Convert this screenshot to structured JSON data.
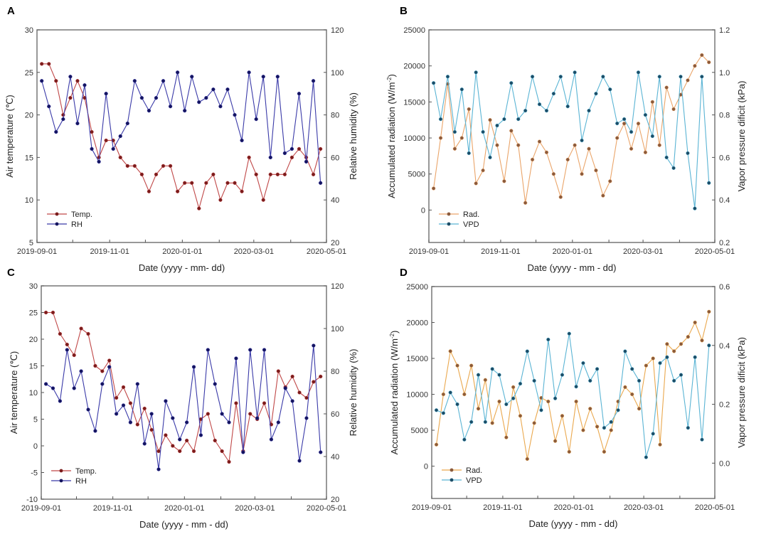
{
  "chart_data": [
    {
      "panel": "A",
      "type": "line",
      "x_start": "2019-09-05",
      "x_step_days": 6,
      "xlabel": "Date (yyyy - mm- dd)",
      "xticks": [
        "2019-09-01",
        "2019-11-01",
        "2020-01-01",
        "2020-03-01",
        "2020-05-01"
      ],
      "ylabel": "Air temperature (℃)",
      "ylim": [
        5,
        30
      ],
      "yticks": [
        5,
        10,
        15,
        20,
        25,
        30
      ],
      "ylabel2": "Relative humidity (%)",
      "ylim2": [
        20,
        120
      ],
      "yticks2": [
        20,
        40,
        60,
        80,
        100,
        120
      ],
      "legend_position": "bottom-left",
      "series": [
        {
          "name": "Temp.",
          "axis": "left",
          "line_color": "#c04848",
          "marker_color": "#7a1c1c",
          "values": [
            26,
            26,
            24,
            20,
            22,
            24,
            22,
            18,
            15,
            17,
            17,
            15,
            14,
            14,
            13,
            11,
            13,
            14,
            14,
            11,
            12,
            12,
            9,
            12,
            13,
            10,
            12,
            12,
            11,
            15,
            13,
            10,
            13,
            13,
            13,
            15,
            16,
            15,
            13,
            16
          ]
        },
        {
          "name": "RH",
          "axis": "right",
          "line_color": "#3a3aa8",
          "marker_color": "#14145e",
          "values": [
            96,
            84,
            72,
            78,
            98,
            76,
            94,
            64,
            58,
            90,
            64,
            70,
            76,
            96,
            88,
            82,
            88,
            96,
            84,
            100,
            82,
            98,
            86,
            88,
            92,
            84,
            92,
            80,
            68,
            100,
            78,
            98,
            60,
            98,
            62,
            64,
            90,
            58,
            96,
            48
          ]
        }
      ]
    },
    {
      "panel": "B",
      "type": "line",
      "x_start": "2019-09-05",
      "x_step_days": 6,
      "xlabel": "Date (yyyy - mm - dd)",
      "xticks": [
        "2019-09-01",
        "2019-11-01",
        "2020-01-01",
        "2020-03-01",
        "2020-05-01"
      ],
      "ylabel": "Accumulated radiation (W/m",
      "ylabel_sup": "-2",
      "ylabel_end": ")",
      "ylim": [
        -4500,
        25000
      ],
      "yticks": [
        0,
        5000,
        10000,
        15000,
        20000,
        25000
      ],
      "ylabel2": "Vapor pressure dificit (kPa)",
      "ylim2": [
        0.2,
        1.2
      ],
      "yticks2": [
        "0.2",
        "0.4",
        "0.6",
        "0.8",
        "1.0",
        "1.2"
      ],
      "legend_position": "bottom-left",
      "series": [
        {
          "name": "Rad.",
          "axis": "left",
          "line_color": "#eaa56a",
          "marker_color": "#8a5a3c",
          "values": [
            3000,
            10000,
            17500,
            8500,
            10000,
            14000,
            3700,
            5500,
            12500,
            9000,
            4000,
            11000,
            9000,
            1000,
            7000,
            9500,
            8000,
            5000,
            1800,
            7000,
            9000,
            5000,
            8500,
            5500,
            2000,
            4000,
            10000,
            12000,
            8500,
            12000,
            8000,
            15000,
            9000,
            17000,
            14000,
            16000,
            18000,
            20000,
            21500,
            20500
          ]
        },
        {
          "name": "VPD",
          "axis": "right",
          "line_color": "#5ab4d4",
          "marker_color": "#1c4c66",
          "values": [
            0.95,
            0.78,
            0.98,
            0.72,
            0.92,
            0.62,
            1.0,
            0.72,
            0.6,
            0.75,
            0.78,
            0.95,
            0.78,
            0.82,
            0.98,
            0.85,
            0.82,
            0.9,
            0.98,
            0.84,
            1.0,
            0.68,
            0.82,
            0.9,
            0.98,
            0.92,
            0.76,
            0.78,
            0.72,
            1.0,
            0.8,
            0.7,
            0.98,
            0.6,
            0.55,
            0.98,
            0.62,
            0.36,
            0.98,
            0.48
          ]
        }
      ]
    },
    {
      "panel": "C",
      "type": "line",
      "x_start": "2019-09-05",
      "x_step_days": 6,
      "xlabel": "Date (yyyy - mm - dd)",
      "xticks": [
        "2019-09-01",
        "2019-11-01",
        "2020-01-01",
        "2020-03-01",
        "2020-05-01"
      ],
      "ylabel": "Air temperature (℃)",
      "ylim": [
        -10,
        30
      ],
      "yticks": [
        -10,
        -5,
        0,
        5,
        10,
        15,
        20,
        25,
        30
      ],
      "ylabel2": "Relative humidity (%)",
      "ylim2": [
        20,
        120
      ],
      "yticks2": [
        20,
        40,
        60,
        80,
        100,
        120
      ],
      "legend_position": "bottom-left",
      "series": [
        {
          "name": "Temp.",
          "axis": "left",
          "line_color": "#c04848",
          "marker_color": "#7a1c1c",
          "values": [
            25,
            25,
            21,
            19,
            17,
            22,
            21,
            15,
            14,
            16,
            9,
            11,
            8,
            4,
            7,
            3,
            -1,
            2,
            0,
            -1,
            1,
            -1,
            5,
            6,
            1,
            -1,
            -3,
            8,
            -1,
            6,
            5,
            8,
            4,
            14,
            11,
            13,
            10,
            9,
            12,
            13
          ]
        },
        {
          "name": "RH",
          "axis": "right",
          "line_color": "#3a3aa8",
          "marker_color": "#14145e",
          "values": [
            74,
            72,
            66,
            90,
            72,
            80,
            62,
            52,
            74,
            82,
            60,
            64,
            56,
            74,
            46,
            60,
            34,
            66,
            58,
            48,
            56,
            82,
            50,
            90,
            74,
            60,
            56,
            86,
            42,
            90,
            58,
            90,
            48,
            56,
            72,
            66,
            38,
            58,
            92,
            42
          ]
        }
      ]
    },
    {
      "panel": "D",
      "type": "line",
      "x_start": "2019-09-05",
      "x_step_days": 6,
      "xlabel": "Date (yyyy - mm - dd)",
      "xticks": [
        "2019-09-01",
        "2019-11-01",
        "2020-01-01",
        "2020-03-01",
        "2020-05-01"
      ],
      "ylabel": "Accumulated radiation (W/m",
      "ylabel_sup": "-2",
      "ylabel_end": ")",
      "ylim": [
        -4500,
        25000
      ],
      "yticks": [
        0,
        5000,
        10000,
        15000,
        20000,
        25000
      ],
      "ylabel2": "Vapor pressure dificit (kPa)",
      "ylim2": [
        -0.12,
        0.6
      ],
      "yticks2": [
        "0.0",
        "0.2",
        "0.4",
        "0.6"
      ],
      "legend_position": "bottom-left",
      "series": [
        {
          "name": "Rad.",
          "axis": "left",
          "line_color": "#eaa84e",
          "marker_color": "#8a5a3c",
          "values": [
            3000,
            10000,
            16000,
            14000,
            10000,
            14000,
            8000,
            12000,
            6000,
            9000,
            4000,
            11000,
            7000,
            1000,
            6000,
            9500,
            9000,
            3500,
            7000,
            2000,
            9000,
            5000,
            8000,
            5500,
            2000,
            5000,
            9000,
            11000,
            10000,
            8000,
            14000,
            15000,
            3000,
            17000,
            16000,
            17000,
            18000,
            20000,
            17500,
            21500
          ]
        },
        {
          "name": "VPD",
          "axis": "right",
          "line_color": "#5ab4d4",
          "marker_color": "#1c4c66",
          "values": [
            0.18,
            0.17,
            0.24,
            0.2,
            0.08,
            0.14,
            0.3,
            0.14,
            0.32,
            0.3,
            0.2,
            0.22,
            0.27,
            0.38,
            0.28,
            0.18,
            0.42,
            0.22,
            0.3,
            0.44,
            0.26,
            0.34,
            0.28,
            0.32,
            0.12,
            0.14,
            0.18,
            0.38,
            0.32,
            0.28,
            0.02,
            0.1,
            0.34,
            0.36,
            0.28,
            0.3,
            0.12,
            0.36,
            0.08,
            0.4
          ]
        }
      ]
    }
  ]
}
